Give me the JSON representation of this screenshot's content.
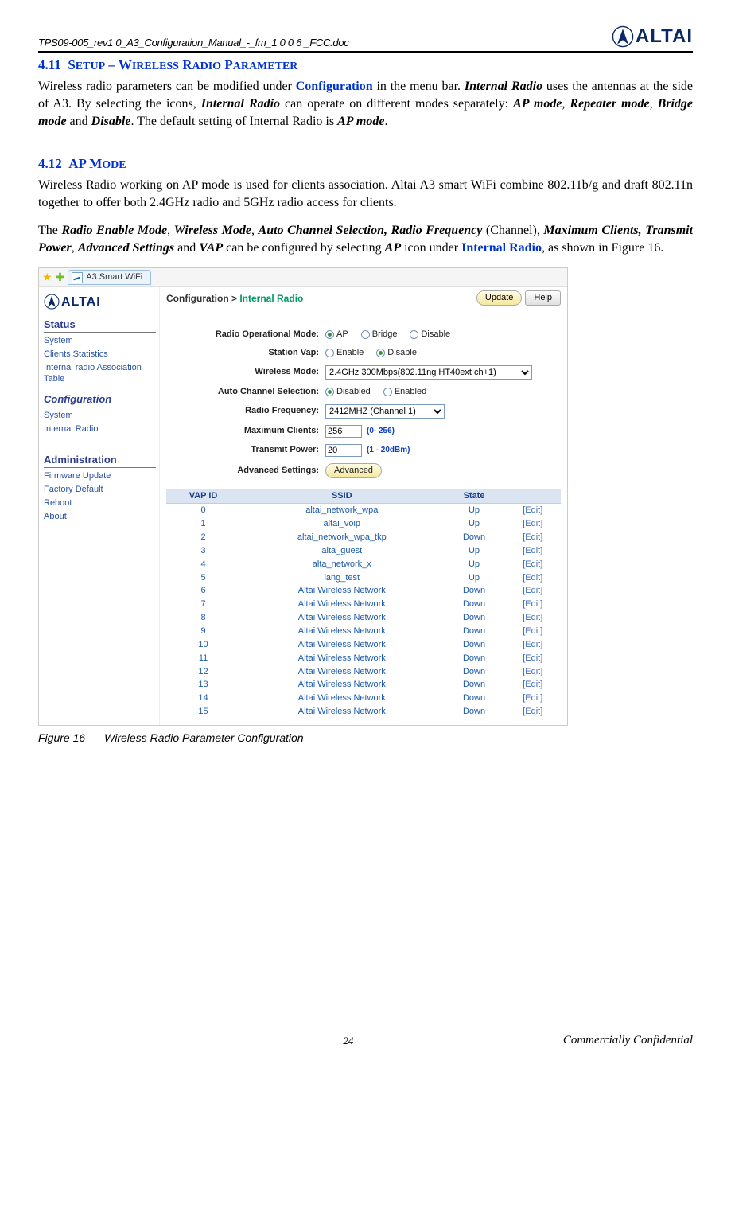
{
  "doc_id": "TPS09-005_rev1 0_A3_Configuration_Manual_-_fm_1 0 0 6 _FCC.doc",
  "logo_name": "ALTAI",
  "section1": {
    "num": "4.11",
    "title_caps": "Setup – Wireless Radio Parameter",
    "para": "Wireless radio parameters can be modified under Configuration in the menu bar. Internal Radio uses the antennas at the side of A3. By selecting the icons, Internal Radio can operate on different modes separately: AP mode, Repeater mode, Bridge mode and Disable. The default setting of Internal Radio is AP mode."
  },
  "section2": {
    "num": "4.12",
    "title_caps": "AP Mode",
    "para1": "Wireless Radio working on AP mode is used for clients association. Altai A3 smart WiFi combine 802.11b/g and draft 802.11n together to offer both 2.4GHz radio and 5GHz radio access for clients.",
    "para2_pre": "The ",
    "para2_terms": "Radio Enable Mode, Wireless Mode, Auto Channel Selection, Radio Frequency",
    "para2_mid": " (Channel), ",
    "para2_terms2": "Maximum Clients, Transmit Power, Advanced Settings",
    "para2_and": " and ",
    "para2_vap": "VAP",
    "para2_tail1": " can be configured by selecting ",
    "para2_ap": "AP",
    "para2_tail2": " icon under ",
    "para2_link": "Internal Radio",
    "para2_tail3": ", as shown in Figure 16."
  },
  "fig": {
    "tab_label": "A3 Smart WiFi",
    "crumb1": "Configuration >",
    "crumb2": "Internal Radio",
    "btn_update": "Update",
    "btn_help": "Help",
    "side": {
      "status_hd": "Status",
      "status_items": [
        "System",
        "Clients Statistics",
        "Internal radio Association Table"
      ],
      "config_hd": "Configuration",
      "config_items": [
        "System",
        "Internal Radio"
      ],
      "admin_hd": "Administration",
      "admin_items": [
        "Firmware Update",
        "Factory Default",
        "Reboot",
        "About"
      ]
    },
    "form": {
      "op_mode_lbl": "Radio Operational Mode:",
      "op_mode_opts": [
        "AP",
        "Bridge",
        "Disable"
      ],
      "op_mode_sel": 0,
      "station_vap_lbl": "Station Vap:",
      "station_vap_opts": [
        "Enable",
        "Disable"
      ],
      "station_vap_sel": 1,
      "wmode_lbl": "Wireless Mode:",
      "wmode_val": "2.4GHz 300Mbps(802.11ng HT40ext ch+1)",
      "auto_ch_lbl": "Auto Channel Selection:",
      "auto_ch_opts": [
        "Disabled",
        "Enabled"
      ],
      "auto_ch_sel": 0,
      "freq_lbl": "Radio Frequency:",
      "freq_val": "2412MHZ (Channel 1)",
      "maxc_lbl": "Maximum Clients:",
      "maxc_val": "256",
      "maxc_hint": "(0- 256)",
      "txp_lbl": "Transmit Power:",
      "txp_val": "20",
      "txp_hint": "(1 - 20dBm)",
      "adv_lbl": "Advanced Settings:",
      "adv_btn": "Advanced"
    },
    "vap": {
      "cols": [
        "VAP ID",
        "SSID",
        "State",
        ""
      ],
      "rows": [
        {
          "id": "0",
          "ssid": "altai_network_wpa",
          "state": "Up"
        },
        {
          "id": "1",
          "ssid": "altai_voip",
          "state": "Up"
        },
        {
          "id": "2",
          "ssid": "altai_network_wpa_tkp",
          "state": "Down"
        },
        {
          "id": "3",
          "ssid": "alta_guest",
          "state": "Up"
        },
        {
          "id": "4",
          "ssid": "alta_network_x",
          "state": "Up"
        },
        {
          "id": "5",
          "ssid": "lang_test",
          "state": "Up"
        },
        {
          "id": "6",
          "ssid": "Altai Wireless Network",
          "state": "Down"
        },
        {
          "id": "7",
          "ssid": "Altai Wireless Network",
          "state": "Down"
        },
        {
          "id": "8",
          "ssid": "Altai Wireless Network",
          "state": "Down"
        },
        {
          "id": "9",
          "ssid": "Altai Wireless Network",
          "state": "Down"
        },
        {
          "id": "10",
          "ssid": "Altai Wireless Network",
          "state": "Down"
        },
        {
          "id": "11",
          "ssid": "Altai Wireless Network",
          "state": "Down"
        },
        {
          "id": "12",
          "ssid": "Altai Wireless Network",
          "state": "Down"
        },
        {
          "id": "13",
          "ssid": "Altai Wireless Network",
          "state": "Down"
        },
        {
          "id": "14",
          "ssid": "Altai Wireless Network",
          "state": "Down"
        },
        {
          "id": "15",
          "ssid": "Altai Wireless Network",
          "state": "Down"
        }
      ],
      "edit": "[Edit]"
    }
  },
  "caption_num": "Figure 16",
  "caption_txt": "Wireless Radio Parameter Configuration",
  "page_num": "24",
  "confidential": "Commercially Confidential"
}
